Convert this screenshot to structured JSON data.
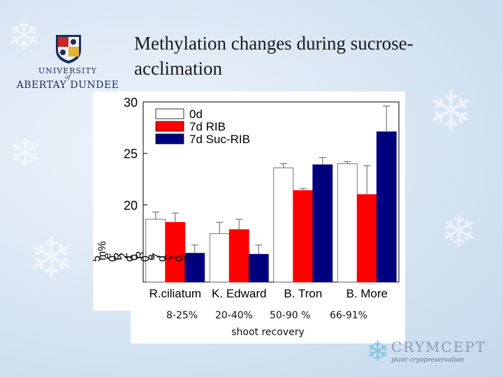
{
  "title": "Methylation changes during sucrose-acclimation",
  "logo": {
    "line1": "UNIVERSITY",
    "of": "of",
    "line2": "ABERTAY DUNDEE"
  },
  "chart_data": {
    "type": "bar",
    "categories": [
      "R.ciliatum",
      "K. Edward",
      "B. Tron",
      "B. More"
    ],
    "series": [
      {
        "name": "0d",
        "color": "#ffffff",
        "values": [
          18.6,
          17.2,
          23.6,
          24.0
        ],
        "errors": [
          0.7,
          1.1,
          0.4,
          0.2
        ]
      },
      {
        "name": "7d RIB",
        "color": "#ff0000",
        "values": [
          18.3,
          17.6,
          21.4,
          21.0
        ],
        "errors": [
          0.9,
          1.0,
          0.2,
          2.8
        ]
      },
      {
        "name": "7d Suc-RIB",
        "color": "#00007f",
        "values": [
          15.3,
          15.2,
          23.9,
          27.1
        ],
        "errors": [
          0.8,
          0.9,
          0.7,
          2.5
        ]
      }
    ],
    "yticks": [
      "30",
      "25",
      "20"
    ],
    "ylim": [
      12.5,
      30
    ],
    "ylabel_fragments": [
      "5",
      "m%",
      "e",
      "0",
      "R",
      "2",
      "d",
      "0",
      "R",
      "0",
      "e",
      "7",
      "d",
      "c",
      "t",
      "o",
      "y"
    ],
    "legend_position": "top-left",
    "grid": false
  },
  "caption": {
    "percent_labels": [
      "8-25%",
      "20-40%",
      "50-90 %",
      "66-91%"
    ],
    "recovery": "shoot recovery"
  },
  "brand": {
    "name": "CRYMCEPT",
    "tagline": "plant cryopreservation"
  }
}
